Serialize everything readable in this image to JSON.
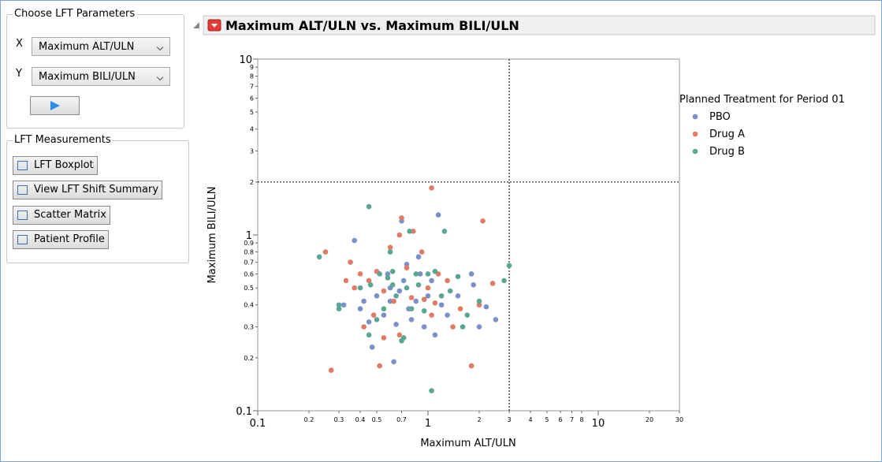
{
  "left_panel": {
    "params_title": "Choose LFT Parameters",
    "x_label": "X",
    "x_value": "Maximum ALT/ULN",
    "y_label": "Y",
    "y_value": "Maximum BILI/ULN",
    "measurements_title": "LFT Measurements",
    "buttons": [
      "LFT Boxplot",
      "View LFT Shift Summary",
      "Scatter Matrix",
      "Patient Profile"
    ]
  },
  "chart_data": {
    "type": "scatter",
    "title": "Maximum ALT/ULN vs. Maximum BILI/ULN",
    "xlabel": "Maximum ALT/ULN",
    "ylabel": "Maximum BILI/ULN",
    "legend_title": "Planned Treatment for Period 01",
    "xscale": "log",
    "yscale": "log",
    "xlim": [
      0.1,
      30
    ],
    "ylim": [
      0.1,
      10
    ],
    "xticks": [
      0.1,
      0.2,
      0.3,
      0.4,
      0.5,
      0.7,
      1,
      2,
      3,
      4,
      5,
      6,
      7,
      8,
      10,
      20,
      30
    ],
    "yticks": [
      0.1,
      0.2,
      0.3,
      0.4,
      0.5,
      0.6,
      0.7,
      0.8,
      0.9,
      1,
      2,
      3,
      4,
      5,
      6,
      7,
      8,
      9,
      10
    ],
    "reference_lines": {
      "x": 3,
      "y": 2
    },
    "series": [
      {
        "name": "PBO",
        "color": "#7b8fc9",
        "x": [
          0.37,
          0.7,
          1.15,
          0.88,
          0.75,
          0.6,
          0.5,
          0.42,
          0.45,
          0.47,
          0.63,
          0.55,
          0.65,
          0.8,
          0.95,
          1.1,
          1.3,
          1.5,
          1.8,
          1.85,
          2.0,
          2.2,
          2.5,
          1.0,
          0.85,
          0.72,
          0.58,
          0.9,
          0.77,
          0.68,
          1.2,
          0.4,
          0.32,
          0.6,
          1.05
        ],
        "values": [
          0.93,
          1.2,
          1.3,
          0.75,
          0.68,
          0.5,
          0.45,
          0.42,
          0.32,
          0.23,
          0.19,
          0.35,
          0.31,
          0.33,
          0.3,
          0.27,
          0.35,
          0.45,
          0.6,
          0.52,
          0.3,
          0.39,
          0.33,
          0.45,
          0.42,
          0.55,
          0.6,
          0.6,
          0.38,
          0.48,
          0.4,
          0.38,
          0.4,
          0.42,
          0.55
        ]
      },
      {
        "name": "Drug A",
        "color": "#e07b66",
        "x": [
          0.27,
          0.25,
          0.35,
          0.52,
          1.05,
          2.1,
          0.7,
          0.68,
          0.82,
          0.6,
          0.4,
          0.45,
          0.55,
          0.63,
          0.92,
          1.0,
          1.3,
          1.4,
          1.8,
          2.0,
          2.4,
          0.42,
          0.48,
          0.55,
          0.68,
          0.8,
          0.95,
          1.1,
          0.75,
          1.15,
          0.37,
          0.33,
          0.5,
          1.05,
          1.55
        ],
        "values": [
          0.17,
          0.8,
          0.7,
          0.18,
          1.85,
          1.2,
          1.25,
          1.0,
          1.05,
          0.85,
          0.6,
          0.55,
          0.48,
          0.42,
          0.8,
          0.5,
          0.55,
          0.3,
          0.18,
          0.4,
          0.53,
          0.3,
          0.35,
          0.26,
          0.27,
          0.44,
          0.43,
          0.41,
          0.65,
          0.6,
          0.5,
          0.55,
          0.62,
          0.35,
          0.38
        ]
      },
      {
        "name": "Drug B",
        "color": "#5aa694",
        "x": [
          0.23,
          0.45,
          0.78,
          1.25,
          0.6,
          0.62,
          0.52,
          0.46,
          0.3,
          0.3,
          0.45,
          0.7,
          0.72,
          0.8,
          1.0,
          1.05,
          1.1,
          1.5,
          2.0,
          2.8,
          3.0,
          0.58,
          0.65,
          0.88,
          0.95,
          1.2,
          1.7,
          0.4,
          0.55,
          0.75,
          1.35,
          0.5,
          0.85,
          1.6,
          0.62
        ],
        "values": [
          0.75,
          1.45,
          1.05,
          1.05,
          0.8,
          0.62,
          0.6,
          0.52,
          0.4,
          0.38,
          0.27,
          0.25,
          0.26,
          0.38,
          0.6,
          0.13,
          0.62,
          0.58,
          0.42,
          0.55,
          0.67,
          0.57,
          0.45,
          0.52,
          0.37,
          0.45,
          0.35,
          0.5,
          0.38,
          0.5,
          0.48,
          0.33,
          0.6,
          0.3,
          0.52
        ]
      }
    ]
  }
}
